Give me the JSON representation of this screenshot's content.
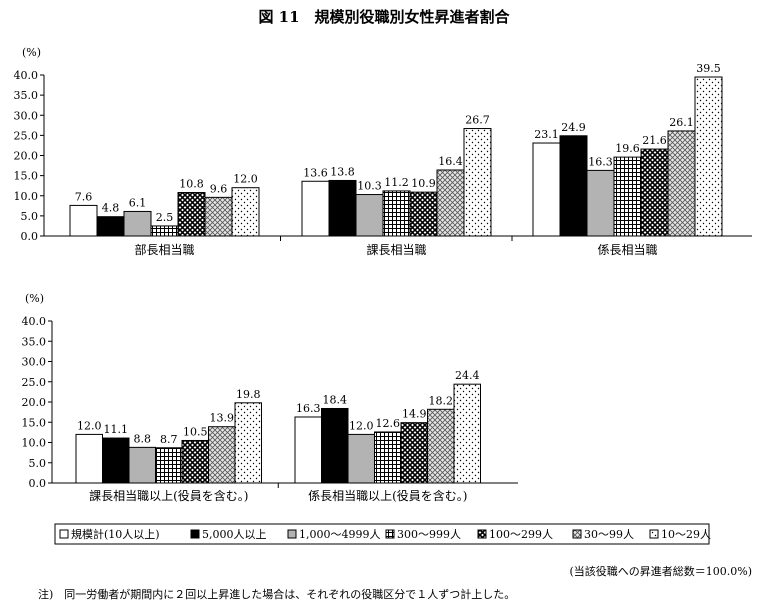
{
  "title": "図 11　規模別役職別女性昇進者割合",
  "unit_label": "(%)",
  "legend": [
    {
      "label": "規模計(10人以上)",
      "pattern": "white"
    },
    {
      "label": "5,000人以上",
      "pattern": "black"
    },
    {
      "label": "1,000～4999人",
      "pattern": "gray"
    },
    {
      "label": "300～999人",
      "pattern": "grid"
    },
    {
      "label": "100～299人",
      "pattern": "cross"
    },
    {
      "label": "30～99人",
      "pattern": "diamond"
    },
    {
      "label": "10～29人",
      "pattern": "dots"
    }
  ],
  "chart_data": [
    {
      "type": "bar",
      "ylabel": "(%)",
      "ylim": [
        0,
        40
      ],
      "yticks": [
        "0.0",
        "5.0",
        "10.0",
        "15.0",
        "20.0",
        "25.0",
        "30.0",
        "35.0",
        "40.0"
      ],
      "categories": [
        "部長相当職",
        "課長相当職",
        "係長相当職"
      ],
      "series": [
        {
          "name": "規模計(10人以上)",
          "values": [
            7.6,
            13.6,
            23.1
          ]
        },
        {
          "name": "5,000人以上",
          "values": [
            4.8,
            13.8,
            24.9
          ]
        },
        {
          "name": "1,000～4999人",
          "values": [
            6.1,
            10.3,
            16.3
          ]
        },
        {
          "name": "300～999人",
          "values": [
            2.5,
            11.2,
            19.6
          ]
        },
        {
          "name": "100～299人",
          "values": [
            10.8,
            10.9,
            21.6
          ]
        },
        {
          "name": "30～99人",
          "values": [
            9.6,
            16.4,
            26.1
          ]
        },
        {
          "name": "10～29人",
          "values": [
            12.0,
            26.7,
            39.5
          ]
        }
      ],
      "value_labels": [
        [
          "7.6",
          "13.6",
          "23.1"
        ],
        [
          "4.8",
          "13.8",
          "24.9"
        ],
        [
          "6.1",
          "10.3",
          "16.3"
        ],
        [
          "2.5",
          "11.2",
          "19.6"
        ],
        [
          "10.8",
          "10.9",
          "21.6"
        ],
        [
          "9.6",
          "16.4",
          "26.1"
        ],
        [
          "12.0",
          "26.7",
          "39.5"
        ]
      ]
    },
    {
      "type": "bar",
      "ylabel": "(%)",
      "ylim": [
        0,
        40
      ],
      "yticks": [
        "0.0",
        "5.0",
        "10.0",
        "15.0",
        "20.0",
        "25.0",
        "30.0",
        "35.0",
        "40.0"
      ],
      "categories": [
        "課長相当職以上(役員を含む。)",
        "係長相当職以上(役員を含む。)"
      ],
      "series": [
        {
          "name": "規模計(10人以上)",
          "values": [
            12.0,
            16.3
          ]
        },
        {
          "name": "5,000人以上",
          "values": [
            11.1,
            18.4
          ]
        },
        {
          "name": "1,000～4999人",
          "values": [
            8.8,
            12.0
          ]
        },
        {
          "name": "300～999人",
          "values": [
            8.7,
            12.6
          ]
        },
        {
          "name": "100～299人",
          "values": [
            10.5,
            14.9
          ]
        },
        {
          "name": "30～99人",
          "values": [
            13.9,
            18.2
          ]
        },
        {
          "name": "10～29人",
          "values": [
            19.8,
            24.4
          ]
        }
      ],
      "value_labels": [
        [
          "12.0",
          "16.3"
        ],
        [
          "11.1",
          "18.4"
        ],
        [
          "8.8",
          "12.0"
        ],
        [
          "8.7",
          "12.6"
        ],
        [
          "10.5",
          "14.9"
        ],
        [
          "13.9",
          "18.2"
        ],
        [
          "19.8",
          "24.4"
        ]
      ]
    }
  ],
  "source_note": "(当該役職への昇進者総数＝100.0%)",
  "footnote": "注)　同一労働者が期間内に２回以上昇進した場合は、それぞれの役職区分で１人ずつ計上した。"
}
